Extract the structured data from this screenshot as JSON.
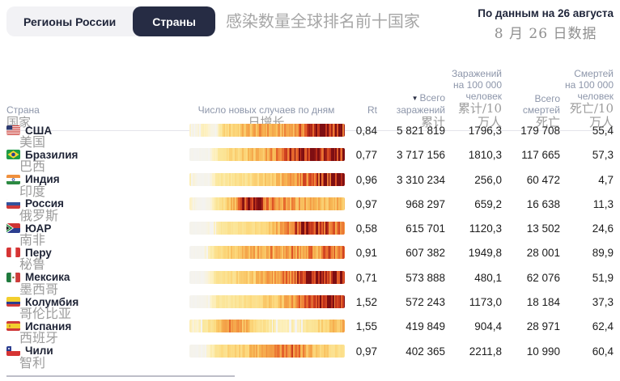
{
  "tabs": {
    "regions_label": "Регионы России",
    "countries_label": "Страны"
  },
  "title_zh": "感染数量全球排名前十国家",
  "updated": {
    "ru": "По данным на 26 августа",
    "zh": "8 月 26 日数据"
  },
  "colors": {
    "accent_dark": "#262c44",
    "tab_bg": "#f2f2f5",
    "header_text": "#8d96aa",
    "zh_text": "#9c9c9c",
    "heat_scale": [
      "#f3f3f4",
      "#fdf2c8",
      "#fbe79d",
      "#fcd97e",
      "#f7b754",
      "#f08a3c",
      "#e05526",
      "#c0311c",
      "#7e0e12"
    ]
  },
  "table": {
    "headers": {
      "country": {
        "ru": "Страна",
        "zh": "国家"
      },
      "daily_cases": {
        "ru": "Число новых случаев по дням",
        "zh": "日增长"
      },
      "rt": {
        "ru": "Rt"
      },
      "total_infections": {
        "sort_icon": "▼",
        "ru_lines": [
          "Всего",
          "заражений"
        ],
        "zh": "累计"
      },
      "infections_per_100k": {
        "ru_lines": [
          "Заражений",
          "на 100 000",
          "человек"
        ],
        "zh": "累计/10 万人"
      },
      "total_deaths": {
        "ru_lines": [
          "Всего",
          "смертей"
        ],
        "zh": "死亡"
      },
      "deaths_per_100k": {
        "ru_lines": [
          "Смертей",
          "на 100 000",
          "человек"
        ],
        "zh": "死亡/10 万人"
      }
    },
    "rows": [
      {
        "flag": "us",
        "name_ru": "США",
        "name_zh": "美国",
        "rt": "0,84",
        "infections": "5 821 819",
        "infections_per_100k": "1796,3",
        "deaths": "179 708",
        "deaths_per_100k": "55,4",
        "daily_profile": [
          6,
          2,
          10,
          3,
          2,
          28,
          32,
          34,
          42,
          46,
          50,
          52,
          50,
          46,
          50,
          55,
          62,
          72,
          85,
          100,
          95,
          88,
          92,
          85
        ]
      },
      {
        "flag": "br",
        "name_ru": "Бразилия",
        "name_zh": "巴西",
        "rt": "0,77",
        "infections": "3 717 156",
        "infections_per_100k": "1810,3",
        "deaths": "117 665",
        "deaths_per_100k": "57,3",
        "daily_profile": [
          1,
          1,
          1,
          2,
          12,
          26,
          30,
          33,
          36,
          40,
          44,
          48,
          54,
          60,
          68,
          76,
          84,
          92,
          100,
          90,
          96,
          88,
          95,
          90
        ]
      },
      {
        "flag": "in",
        "name_ru": "Индия",
        "name_zh": "印度",
        "rt": "0,96",
        "infections": "3 310 234",
        "infections_per_100k": "256,0",
        "deaths": "60 472",
        "deaths_per_100k": "4,7",
        "daily_profile": [
          8,
          1,
          1,
          2,
          16,
          18,
          20,
          22,
          25,
          27,
          30,
          33,
          36,
          40,
          46,
          52,
          60,
          68,
          76,
          84,
          90,
          95,
          98,
          100
        ]
      },
      {
        "flag": "ru",
        "name_ru": "Россия",
        "name_zh": "俄罗斯",
        "rt": "0,97",
        "infections": "968 297",
        "infections_per_100k": "659,2",
        "deaths": "16 638",
        "deaths_per_100k": "11,3",
        "daily_profile": [
          7,
          1,
          1,
          2,
          18,
          26,
          38,
          58,
          85,
          100,
          92,
          78,
          68,
          60,
          56,
          53,
          51,
          49,
          47,
          45,
          47,
          44,
          45,
          42
        ]
      },
      {
        "flag": "za",
        "name_ru": "ЮАР",
        "name_zh": "南非",
        "rt": "0,58",
        "infections": "615 701",
        "infections_per_100k": "1120,3",
        "deaths": "13 502",
        "deaths_per_100k": "24,6",
        "daily_profile": [
          1,
          1,
          1,
          3,
          14,
          17,
          19,
          21,
          23,
          26,
          29,
          33,
          39,
          46,
          56,
          70,
          86,
          100,
          94,
          88,
          78,
          72,
          68,
          62
        ]
      },
      {
        "flag": "pe",
        "name_ru": "Перу",
        "name_zh": "秘鲁",
        "rt": "0,91",
        "infections": "607 382",
        "infections_per_100k": "1949,8",
        "deaths": "28 001",
        "deaths_per_100k": "89,9",
        "daily_profile": [
          1,
          1,
          1,
          10,
          24,
          30,
          34,
          38,
          44,
          48,
          46,
          52,
          56,
          48,
          56,
          62,
          58,
          50,
          66,
          42,
          72,
          76,
          58,
          70
        ]
      },
      {
        "flag": "mx",
        "name_ru": "Мексика",
        "name_zh": "墨西哥",
        "rt": "0,71",
        "infections": "573 888",
        "infections_per_100k": "480,1",
        "deaths": "62 076",
        "deaths_per_100k": "51,9",
        "daily_profile": [
          1,
          1,
          1,
          7,
          18,
          23,
          27,
          30,
          33,
          36,
          40,
          45,
          50,
          56,
          63,
          70,
          78,
          86,
          93,
          100,
          94,
          90,
          96,
          88
        ]
      },
      {
        "flag": "co",
        "name_ru": "Колумбия",
        "name_zh": "哥伦比亚",
        "rt": "1,52",
        "infections": "572 243",
        "infections_per_100k": "1173,0",
        "deaths": "18 184",
        "deaths_per_100k": "37,3",
        "daily_profile": [
          1,
          1,
          1,
          4,
          14,
          17,
          19,
          21,
          23,
          25,
          28,
          31,
          35,
          39,
          45,
          52,
          60,
          68,
          77,
          86,
          93,
          100,
          70,
          100
        ]
      },
      {
        "flag": "es",
        "name_ru": "Испания",
        "name_zh": "西班牙",
        "rt": "1,55",
        "infections": "419 849",
        "infections_per_100k": "904,4",
        "deaths": "28 971",
        "deaths_per_100k": "62,4",
        "daily_profile": [
          9,
          4,
          14,
          24,
          38,
          52,
          62,
          58,
          48,
          38,
          28,
          20,
          14,
          10,
          8,
          11,
          9,
          14,
          22,
          28,
          33,
          42,
          38,
          48
        ]
      },
      {
        "flag": "cl",
        "name_ru": "Чили",
        "name_zh": "智利",
        "rt": "0,97",
        "infections": "402 365",
        "infections_per_100k": "2211,8",
        "deaths": "10 990",
        "deaths_per_100k": "60,4",
        "daily_profile": [
          1,
          1,
          2,
          9,
          20,
          25,
          29,
          32,
          35,
          40,
          45,
          50,
          56,
          62,
          68,
          72,
          62,
          52,
          46,
          40,
          34,
          28,
          24,
          18
        ]
      }
    ]
  }
}
